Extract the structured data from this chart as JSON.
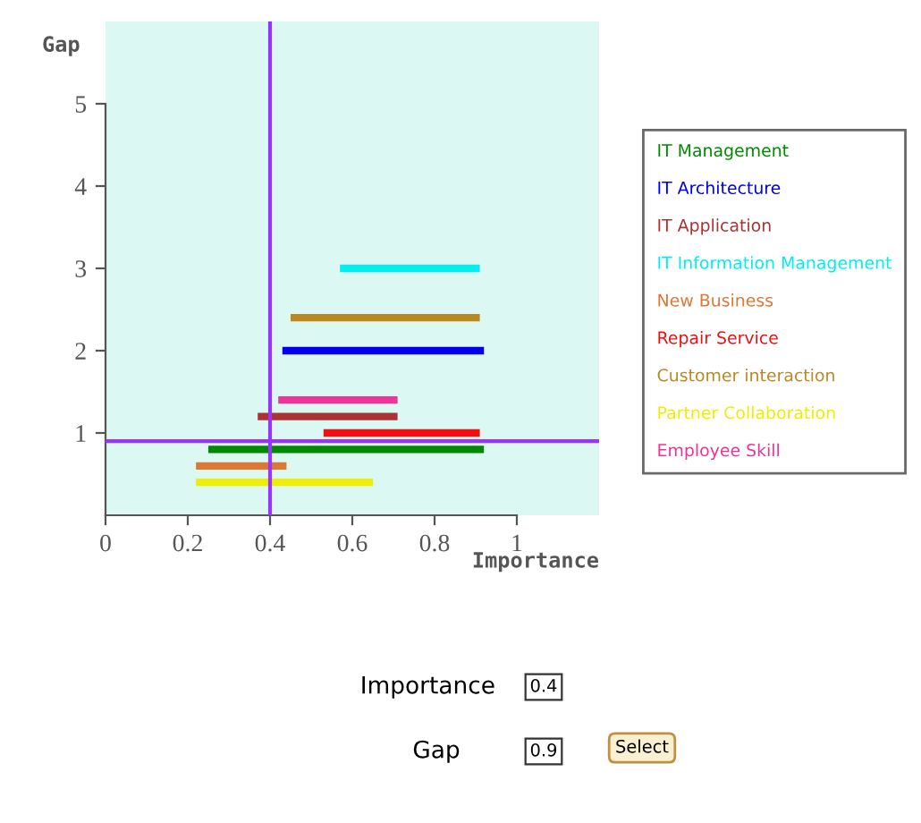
{
  "chart_data": {
    "type": "line",
    "xlabel": "Importance",
    "ylabel": "Gap",
    "xlim": [
      0,
      1.2
    ],
    "ylim": [
      0,
      6
    ],
    "xticks": [
      0,
      0.2,
      0.4,
      0.6,
      0.8,
      1
    ],
    "yticks": [
      1,
      2,
      3,
      4,
      5
    ],
    "series": [
      {
        "name": "IT Management",
        "color": "#008800",
        "x": [
          0.25,
          0.92
        ],
        "values": [
          0.8,
          0.8
        ]
      },
      {
        "name": "IT Architecture",
        "color": "#0000ee",
        "x": [
          0.43,
          0.92
        ],
        "values": [
          2,
          2
        ]
      },
      {
        "name": "IT Application",
        "color": "#aa3333",
        "x": [
          0.37,
          0.71
        ],
        "values": [
          1.2,
          1.2
        ]
      },
      {
        "name": "IT Information Management",
        "color": "#00eeee",
        "x": [
          0.57,
          0.91
        ],
        "values": [
          3,
          3
        ]
      },
      {
        "name": "New Business",
        "color": "#dd7733",
        "x": [
          0.22,
          0.44
        ],
        "values": [
          0.6,
          0.6
        ]
      },
      {
        "name": "Repair Service",
        "color": "#ee1111",
        "x": [
          0.53,
          0.91
        ],
        "values": [
          1,
          1
        ]
      },
      {
        "name": "Customer interaction",
        "color": "#bb8822",
        "x": [
          0.45,
          0.91
        ],
        "values": [
          2.4,
          2.4
        ]
      },
      {
        "name": "Partner Collaboration",
        "color": "#eeee00",
        "x": [
          0.22,
          0.65
        ],
        "values": [
          0.4,
          0.4
        ]
      },
      {
        "name": "Employee Skill",
        "color": "#ee3399",
        "x": [
          0.42,
          0.71
        ],
        "values": [
          1.4,
          1.4
        ]
      }
    ],
    "ref_lines": [
      {
        "axis": "x",
        "value": 0.4,
        "color": "#9933ff"
      },
      {
        "axis": "y",
        "value": 0.9,
        "color": "#9933ff"
      }
    ],
    "annotations": [
      "Importance",
      "0.4",
      "Gap",
      "0.9",
      "Select"
    ],
    "legend": "right",
    "grid": false,
    "marker": "none",
    "line_style": "solid"
  }
}
